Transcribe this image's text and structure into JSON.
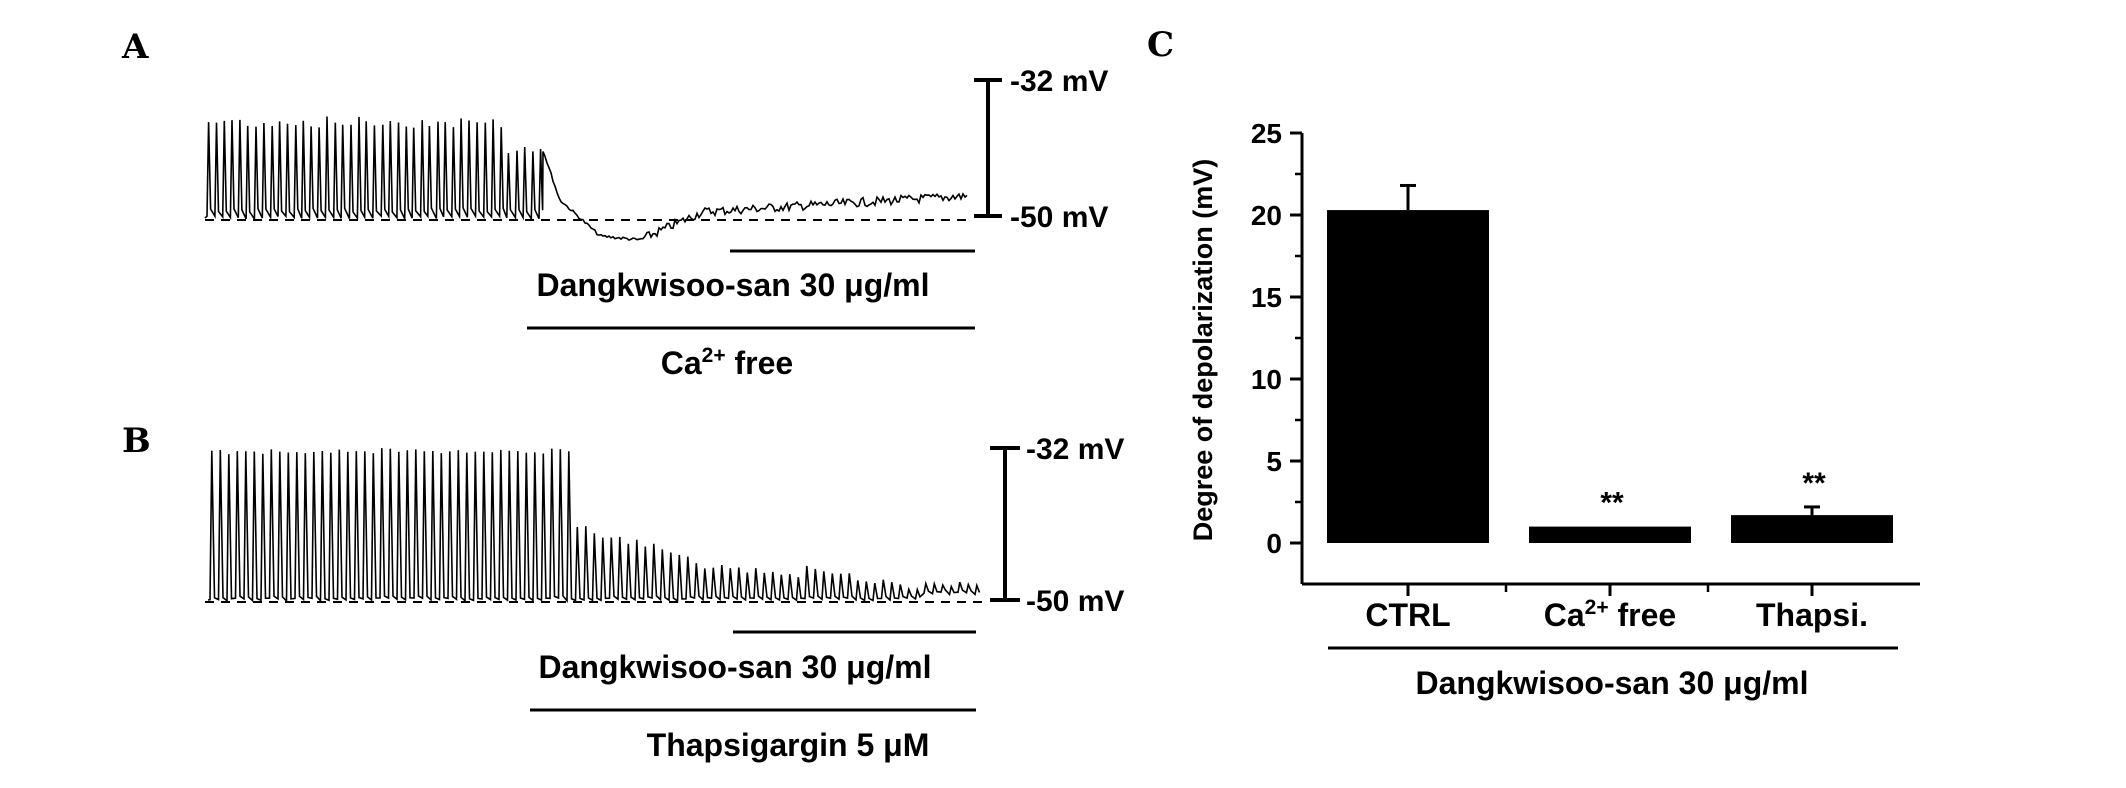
{
  "panels": {
    "a": "A",
    "b": "B",
    "c": "C"
  },
  "trace_a": {
    "scale_top": "-32 mV",
    "scale_bottom": "-50 mV",
    "treatment": "Dangkwisoo-san 30 μg/ml",
    "condition_base": "Ca",
    "condition_sup": "2+",
    "condition_tail": " free"
  },
  "trace_b": {
    "scale_top": "-32 mV",
    "scale_bottom": "-50 mV",
    "treatment": "Dangkwisoo-san 30 μg/ml",
    "condition": "Thapsigargin 5 μM"
  },
  "chart_data": {
    "type": "bar",
    "ylabel": "Degree of depolarization (mV)",
    "ylim": [
      -2.5,
      25
    ],
    "yticks": [
      0,
      5,
      10,
      15,
      20,
      25
    ],
    "bars": [
      {
        "label": "CTRL",
        "value": 20.3,
        "error": 1.5,
        "sig": ""
      },
      {
        "label_base": "Ca",
        "label_sup": "2+",
        "label_tail": " free",
        "value": 1.0,
        "error": 0,
        "sig": "**"
      },
      {
        "label": "Thapsi.",
        "value": 1.7,
        "error": 0.5,
        "sig": "**"
      }
    ],
    "group_label": "Dangkwisoo-san 30 μg/ml",
    "bar_color": "#000000"
  }
}
